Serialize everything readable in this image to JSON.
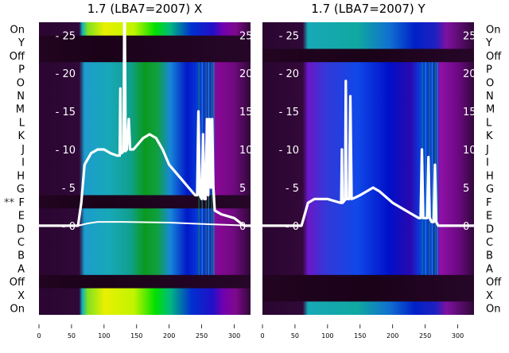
{
  "chart_data": [
    {
      "type": "line",
      "title": "1.7 (LBA7=2007) X",
      "xlim": [
        0,
        325
      ],
      "ylim": [
        -11.7,
        26.7
      ],
      "xticks": [
        0,
        50,
        100,
        150,
        200,
        250,
        300
      ],
      "yticks": [
        0,
        5,
        10,
        15,
        20,
        25
      ],
      "row_labels": [
        "On",
        "Y",
        "Off",
        "P",
        "O",
        "N",
        "M",
        "L",
        "K",
        "J",
        "I",
        "H",
        "G",
        "F",
        "E",
        "D",
        "C",
        "B",
        "A",
        "Off",
        "X",
        "On"
      ],
      "row_bands": [
        "bright",
        "dark",
        "dark",
        "normal",
        "normal",
        "normal",
        "normal",
        "normal",
        "normal",
        "normal",
        "normal",
        "normal",
        "normal",
        "dark",
        "normal",
        "normal",
        "normal",
        "normal",
        "normal",
        "dark",
        "bright",
        "bright"
      ],
      "flag_marker": {
        "row": "F",
        "text": "**"
      },
      "label_side": "left",
      "series": [
        {
          "name": "spectra",
          "x": [
            0,
            60,
            65,
            70,
            80,
            90,
            100,
            110,
            120,
            124,
            125,
            126,
            128,
            130,
            131,
            132,
            133,
            135,
            138,
            140,
            142,
            145,
            150,
            160,
            170,
            180,
            190,
            200,
            210,
            220,
            230,
            240,
            243,
            245,
            247,
            250,
            252,
            254,
            256,
            258,
            260,
            262,
            264,
            266,
            268,
            270,
            280,
            300,
            315,
            325
          ],
          "y": [
            0,
            0,
            3,
            8,
            9.5,
            10,
            10,
            9.5,
            9.2,
            9.2,
            18,
            9.5,
            9.6,
            9.8,
            26.7,
            26.7,
            9.8,
            10,
            14,
            10,
            10,
            10,
            10.5,
            11.5,
            12,
            11.5,
            10,
            8,
            7,
            6,
            5,
            4,
            4,
            15,
            4,
            3.5,
            12,
            3.5,
            3.5,
            14,
            4,
            14,
            5,
            14,
            5,
            2,
            1.5,
            1,
            0,
            0
          ]
        },
        {
          "name": "baseline",
          "x": [
            0,
            60,
            75,
            90,
            130,
            200,
            260,
            325
          ],
          "y": [
            0,
            0,
            0.3,
            0.5,
            0.5,
            0.4,
            0.2,
            0
          ]
        }
      ]
    },
    {
      "type": "line",
      "title": "1.7 (LBA7=2007) Y",
      "xlim": [
        0,
        325
      ],
      "ylim": [
        -11.7,
        26.7
      ],
      "xticks": [
        0,
        50,
        100,
        150,
        200,
        250,
        300
      ],
      "yticks": [
        0,
        5,
        10,
        15,
        20,
        25
      ],
      "row_labels": [
        "On",
        "Y",
        "Off",
        "P",
        "O",
        "N",
        "M",
        "L",
        "K",
        "J",
        "I",
        "H",
        "G",
        "F",
        "E",
        "D",
        "C",
        "B",
        "A",
        "Off",
        "X",
        "On"
      ],
      "row_bands": [
        "bright",
        "bright",
        "dark",
        "normal",
        "normal",
        "normal",
        "normal",
        "normal",
        "normal",
        "normal",
        "normal",
        "normal",
        "normal",
        "normal",
        "normal",
        "normal",
        "normal",
        "normal",
        "normal",
        "dark",
        "dark",
        "bright"
      ],
      "label_side": "right",
      "series": [
        {
          "name": "spectra",
          "x": [
            0,
            60,
            70,
            80,
            100,
            120,
            121,
            122,
            123,
            125,
            127,
            128,
            129,
            131,
            133,
            135,
            137,
            140,
            150,
            170,
            180,
            200,
            230,
            240,
            243,
            245,
            247,
            250,
            253,
            255,
            257,
            260,
            263,
            265,
            267,
            270,
            325
          ],
          "y": [
            0,
            0,
            3,
            3.5,
            3.5,
            3,
            3,
            10,
            3,
            3.2,
            3.4,
            19,
            3.5,
            3.5,
            3.5,
            17,
            3.5,
            3.6,
            4,
            5,
            4.5,
            3,
            1.5,
            1,
            1,
            10,
            1,
            1,
            1,
            9,
            1,
            0.5,
            0.5,
            8,
            0.5,
            0,
            0
          ]
        }
      ]
    }
  ]
}
